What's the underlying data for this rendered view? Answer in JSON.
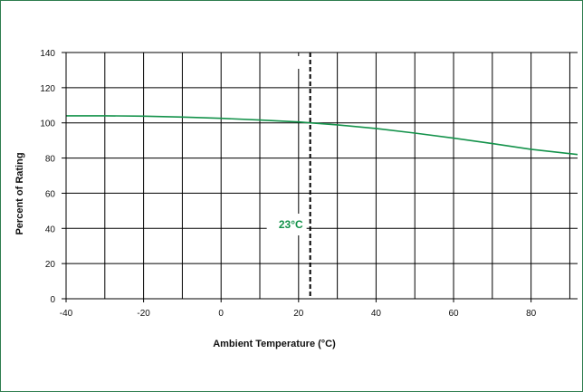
{
  "chart_data": {
    "type": "line",
    "xlabel": "Ambient Temperature (°C)",
    "ylabel": "Percent of Rating",
    "xlim": [
      -40,
      92
    ],
    "ylim": [
      0,
      140
    ],
    "x_ticks": [
      -40,
      -20,
      0,
      20,
      40,
      60,
      80
    ],
    "y_ticks": [
      0,
      20,
      40,
      60,
      80,
      100,
      120,
      140
    ],
    "vertical_grid_x": [
      -40,
      -30,
      -20,
      -10,
      0,
      10,
      20,
      30,
      40,
      50,
      60,
      70,
      80,
      90
    ],
    "grid": true,
    "series": [
      {
        "color": "#13924a",
        "x": [
          -40,
          -30,
          -20,
          -10,
          0,
          10,
          20,
          23,
          30,
          40,
          50,
          60,
          70,
          80,
          92
        ],
        "y": [
          104,
          104,
          103.8,
          103.3,
          102.6,
          101.6,
          100.5,
          100,
          98.9,
          96.8,
          94.2,
          91.3,
          88.2,
          85.0,
          82.0
        ]
      }
    ],
    "reference_line": {
      "x": 23,
      "label": "23°C",
      "style": "dashed"
    }
  }
}
